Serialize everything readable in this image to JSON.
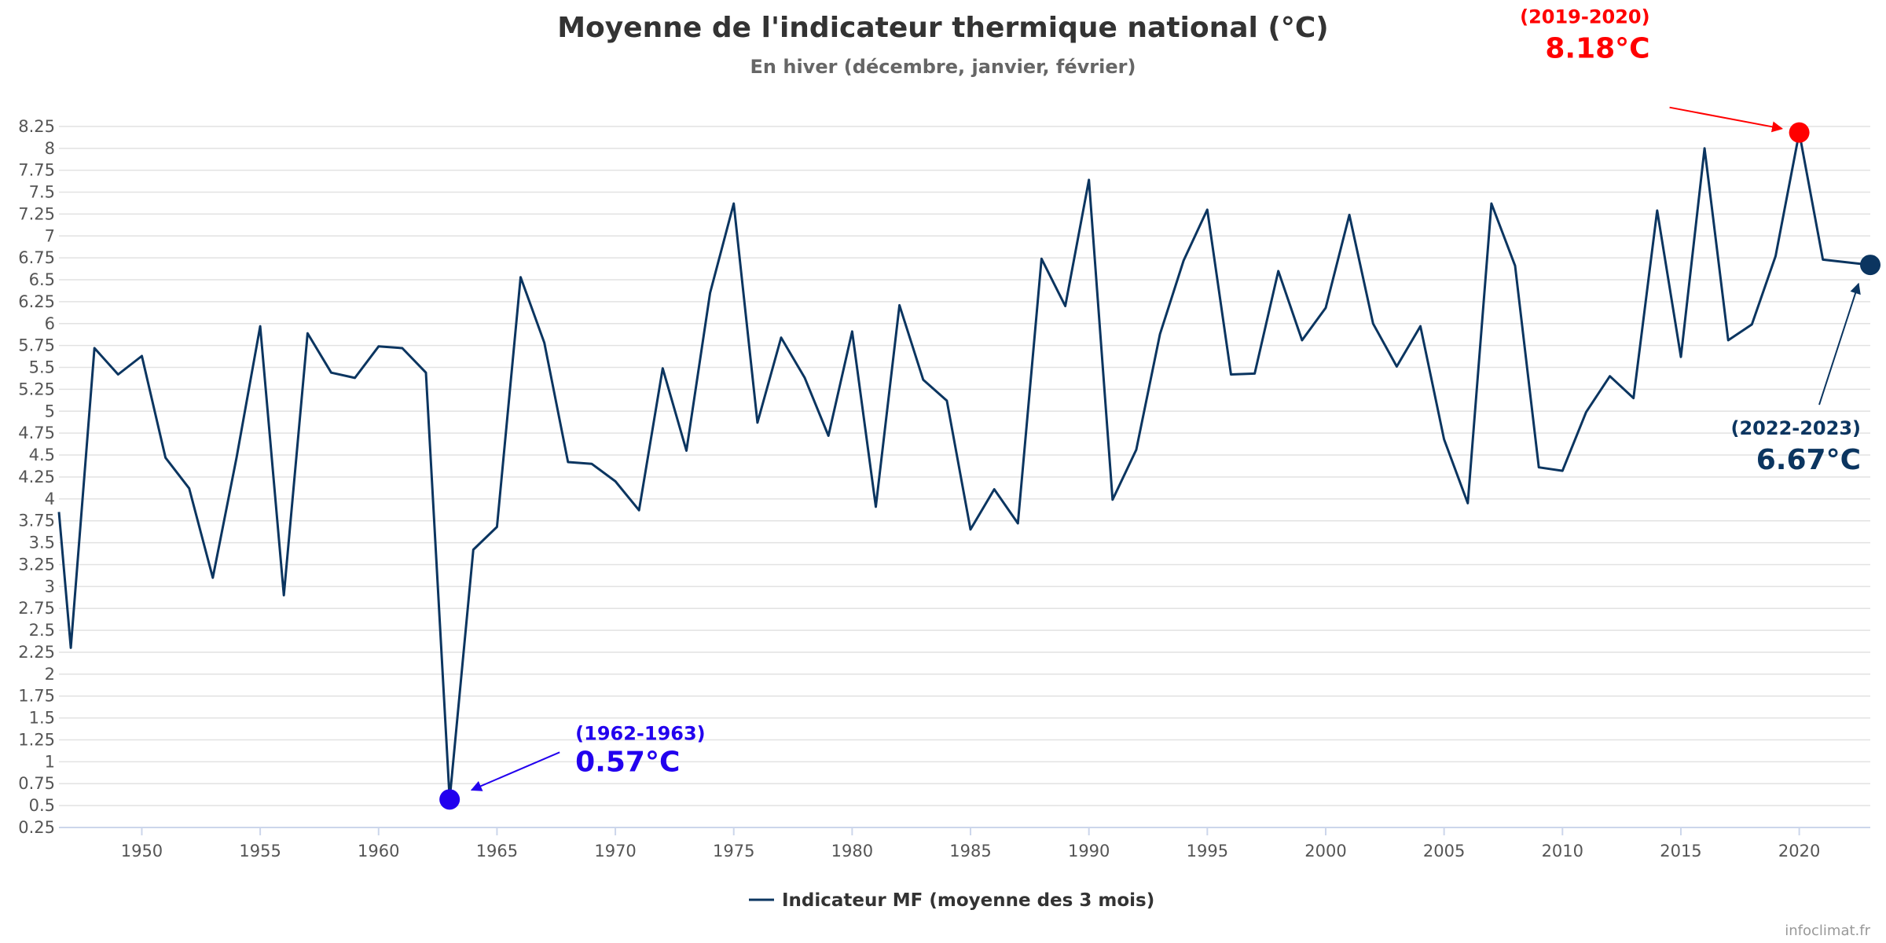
{
  "chart_data": {
    "type": "line",
    "title": "Moyenne de l'indicateur thermique national (°C)",
    "subtitle": "En hiver (décembre, janvier, février)",
    "xlabel": "",
    "ylabel": "",
    "xlim": [
      1946.5,
      2023
    ],
    "ylim": [
      0.25,
      8.5
    ],
    "grid": true,
    "legend_position": "bottom-center",
    "x_ticks": [
      "1950",
      "1955",
      "1960",
      "1965",
      "1970",
      "1975",
      "1980",
      "1985",
      "1990",
      "1995",
      "2000",
      "2005",
      "2010",
      "2015",
      "2020"
    ],
    "y_ticks": [
      "0.25",
      "0.5",
      "0.75",
      "1",
      "1.25",
      "1.5",
      "1.75",
      "2",
      "2.25",
      "2.5",
      "2.75",
      "3",
      "3.25",
      "3.5",
      "3.75",
      "4",
      "4.25",
      "4.5",
      "4.75",
      "5",
      "5.25",
      "5.5",
      "5.75",
      "6",
      "6.25",
      "6.5",
      "6.75",
      "7",
      "7.25",
      "7.5",
      "7.75",
      "8",
      "8.25"
    ],
    "series": [
      {
        "name": "Indicateur MF (moyenne des 3 mois)",
        "color": "#0b3560",
        "x": [
          1946.5,
          1947,
          1948,
          1949,
          1950,
          1951,
          1952,
          1953,
          1954,
          1955,
          1956,
          1957,
          1958,
          1959,
          1960,
          1961,
          1962,
          1963,
          1964,
          1965,
          1966,
          1967,
          1968,
          1969,
          1970,
          1971,
          1972,
          1973,
          1974,
          1975,
          1976,
          1977,
          1978,
          1979,
          1980,
          1981,
          1982,
          1983,
          1984,
          1985,
          1986,
          1987,
          1988,
          1989,
          1990,
          1991,
          1992,
          1993,
          1994,
          1995,
          1996,
          1997,
          1998,
          1999,
          2000,
          2001,
          2002,
          2003,
          2004,
          2005,
          2006,
          2007,
          2008,
          2009,
          2010,
          2011,
          2012,
          2013,
          2014,
          2015,
          2016,
          2017,
          2018,
          2019,
          2020,
          2021,
          2023
        ],
        "values": [
          3.85,
          2.3,
          5.72,
          5.42,
          5.63,
          4.47,
          4.12,
          3.1,
          4.47,
          5.97,
          2.9,
          5.89,
          5.44,
          5.38,
          5.74,
          5.72,
          5.44,
          0.57,
          3.42,
          3.68,
          6.53,
          5.78,
          4.42,
          4.4,
          4.2,
          3.87,
          5.49,
          4.55,
          6.35,
          7.37,
          4.87,
          5.84,
          5.38,
          4.72,
          5.91,
          3.91,
          6.21,
          5.36,
          5.12,
          3.65,
          4.11,
          3.72,
          6.74,
          6.2,
          7.64,
          3.99,
          4.56,
          5.88,
          6.72,
          7.3,
          5.42,
          5.43,
          6.6,
          5.81,
          6.18,
          7.24,
          6.0,
          5.51,
          5.97,
          4.68,
          3.95,
          7.37,
          6.66,
          4.36,
          4.32,
          4.99,
          5.4,
          5.15,
          7.29,
          5.62,
          8.0,
          5.81,
          5.99,
          6.77,
          8.18,
          6.73,
          6.67
        ]
      }
    ],
    "annotations": [
      {
        "period": "(2019-2020)",
        "value_label": "8.18°C",
        "x": 2020,
        "y": 8.18,
        "color": "#ff0000"
      },
      {
        "period": "(1962-1963)",
        "value_label": "0.57°C",
        "x": 1963,
        "y": 0.57,
        "color": "#2200ee"
      },
      {
        "period": "(2022-2023)",
        "value_label": "6.67°C",
        "x": 2023,
        "y": 6.67,
        "color": "#0b3560"
      }
    ]
  },
  "credit": "infoclimat.fr"
}
